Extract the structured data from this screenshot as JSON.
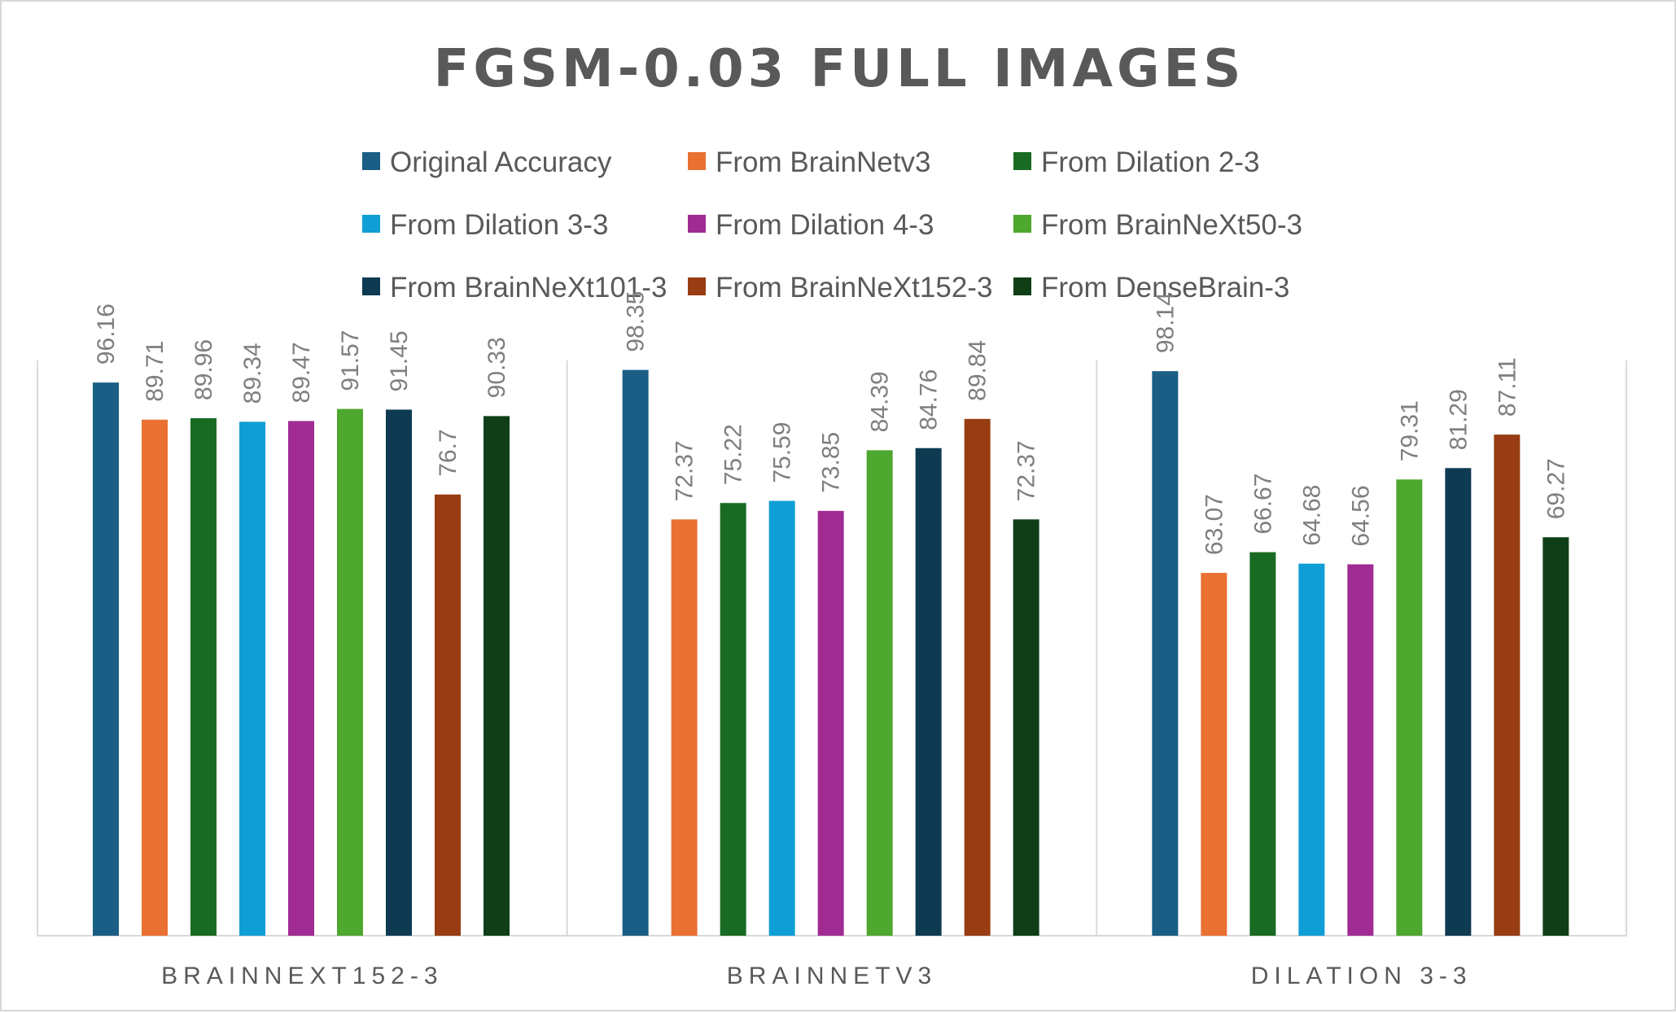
{
  "chart_data": {
    "type": "bar",
    "title": "FGSM-0.03 FULL IMAGES",
    "xlabel": "",
    "ylabel": "",
    "ylim": [
      0,
      100
    ],
    "grid": false,
    "legend_position": "top",
    "categories": [
      "BRAINNEXT152-3",
      "BRAINNETV3",
      "DILATION 3-3"
    ],
    "data_labels": [
      [
        "96.16",
        "89.71",
        "89.96",
        "89.34",
        "89.47",
        "91.57",
        "91.45",
        "76.7",
        "90.33"
      ],
      [
        "98.35",
        "72.37",
        "75.22",
        "75.59",
        "73.85",
        "84.39",
        "84.76",
        "89.84",
        "72.37"
      ],
      [
        "98.14",
        "63.07",
        "66.67",
        "64.68",
        "64.56",
        "79.31",
        "81.29",
        "87.11",
        "69.27"
      ]
    ],
    "series": [
      {
        "name": "Original Accuracy",
        "color": "#1a5e85",
        "values": [
          96.16,
          98.35,
          98.14
        ]
      },
      {
        "name": "From BrainNetv3",
        "color": "#e97132",
        "values": [
          89.71,
          72.37,
          63.07
        ]
      },
      {
        "name": "From Dilation 2-3",
        "color": "#196b24",
        "values": [
          89.96,
          75.22,
          66.67
        ]
      },
      {
        "name": "From Dilation 3-3",
        "color": "#0f9ed5",
        "values": [
          89.34,
          75.59,
          64.68
        ]
      },
      {
        "name": "From Dilation 4-3",
        "color": "#a02b93",
        "values": [
          89.47,
          73.85,
          64.56
        ]
      },
      {
        "name": "From BrainNeXt50-3",
        "color": "#4ea72e",
        "values": [
          91.57,
          84.39,
          79.31
        ]
      },
      {
        "name": "From BrainNeXt101-3",
        "color": "#0e3a52",
        "values": [
          91.45,
          84.76,
          81.29
        ]
      },
      {
        "name": "From BrainNeXt152-3",
        "color": "#983d13",
        "values": [
          76.7,
          89.84,
          87.11
        ]
      },
      {
        "name": "From DenseBrain-3",
        "color": "#103f17",
        "values": [
          90.33,
          72.37,
          69.27
        ]
      }
    ]
  }
}
